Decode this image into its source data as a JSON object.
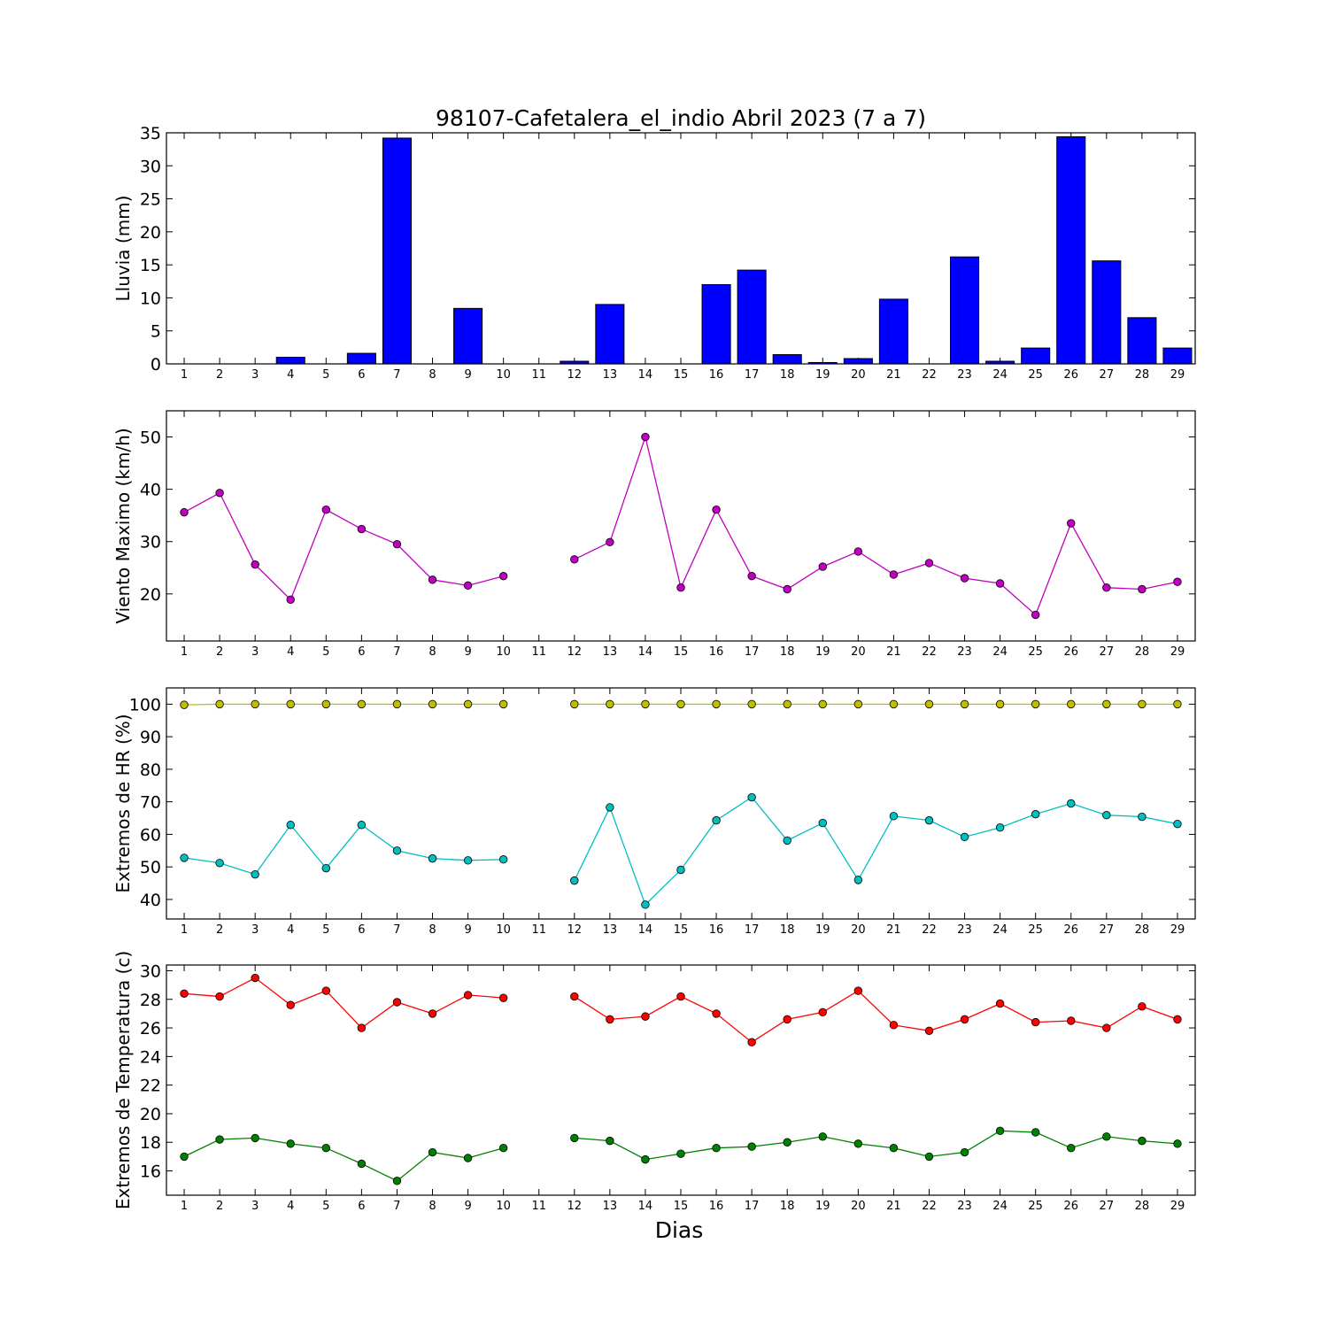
{
  "title": "98107-Cafetalera_el_indio Abril 2023  (7 a 7)",
  "xlabel": "Dias",
  "days": [
    1,
    2,
    3,
    4,
    5,
    6,
    7,
    8,
    9,
    10,
    11,
    12,
    13,
    14,
    15,
    16,
    17,
    18,
    19,
    20,
    21,
    22,
    23,
    24,
    25,
    26,
    27,
    28,
    29
  ],
  "chart_data": [
    {
      "type": "bar",
      "ylabel": "Lluvia (mm)",
      "ylim": [
        0,
        35
      ],
      "yticks": [
        0,
        5,
        10,
        15,
        20,
        25,
        30,
        35
      ],
      "color": "#0000ff",
      "values": [
        0,
        0,
        0,
        1.0,
        0,
        1.6,
        34.2,
        0,
        8.4,
        0,
        0,
        0.4,
        9.0,
        0,
        0,
        12.0,
        14.2,
        1.4,
        0.2,
        0.8,
        9.8,
        0,
        16.2,
        0.4,
        2.4,
        34.4,
        15.6,
        7.0,
        2.4
      ]
    },
    {
      "type": "line",
      "ylabel": "Viento Maximo (km/h)",
      "ylim": [
        11,
        55
      ],
      "yticks": [
        20,
        30,
        40,
        50
      ],
      "series": [
        {
          "color": "#bf00bf",
          "values": [
            35.6,
            39.3,
            25.6,
            18.9,
            36.1,
            32.4,
            29.5,
            22.7,
            21.6,
            23.4,
            null,
            26.6,
            29.9,
            50.0,
            21.2,
            36.1,
            23.4,
            20.9,
            25.2,
            28.1,
            23.7,
            25.9,
            23.0,
            22.0,
            16.0,
            33.5,
            21.2,
            20.9,
            22.3
          ]
        }
      ]
    },
    {
      "type": "line",
      "ylabel": "Extremos de HR (%)",
      "ylim": [
        34,
        105
      ],
      "yticks": [
        40,
        50,
        60,
        70,
        80,
        90,
        100
      ],
      "series": [
        {
          "color": "#bfbf00",
          "values": [
            99.8,
            100,
            100,
            100,
            100,
            100,
            100,
            100,
            100,
            100,
            null,
            100,
            100,
            100,
            100,
            100,
            100,
            100,
            100,
            100,
            100,
            100,
            100,
            100,
            100,
            100,
            100,
            100,
            100
          ]
        },
        {
          "color": "#00bfbf",
          "values": [
            52.8,
            51.2,
            47.7,
            62.9,
            49.6,
            62.9,
            55.0,
            52.6,
            52.0,
            52.3,
            null,
            45.8,
            68.3,
            38.4,
            49.1,
            64.3,
            71.4,
            58.1,
            63.5,
            46.0,
            65.6,
            64.3,
            59.2,
            62.1,
            66.2,
            69.5,
            65.9,
            65.4,
            63.2
          ]
        }
      ]
    },
    {
      "type": "line",
      "ylabel": "Extremos de Temperatura (c)",
      "ylim": [
        14.3,
        30.4
      ],
      "yticks": [
        16,
        18,
        20,
        22,
        24,
        26,
        28,
        30
      ],
      "series": [
        {
          "color": "#ff0000",
          "values": [
            28.4,
            28.2,
            29.5,
            27.6,
            28.6,
            26.0,
            27.8,
            27.0,
            28.3,
            28.1,
            null,
            28.2,
            26.6,
            26.8,
            28.2,
            27.0,
            25.0,
            26.6,
            27.1,
            28.6,
            26.2,
            25.8,
            26.6,
            27.7,
            26.4,
            26.5,
            26.0,
            27.5,
            26.6
          ]
        },
        {
          "color": "#008000",
          "values": [
            17.0,
            18.2,
            18.3,
            17.9,
            17.6,
            16.5,
            15.3,
            17.3,
            16.9,
            17.6,
            null,
            18.3,
            18.1,
            16.8,
            17.2,
            17.6,
            17.7,
            18.0,
            18.4,
            17.9,
            17.6,
            17.0,
            17.3,
            18.8,
            18.7,
            17.6,
            18.4,
            18.1,
            17.9
          ]
        }
      ]
    }
  ]
}
